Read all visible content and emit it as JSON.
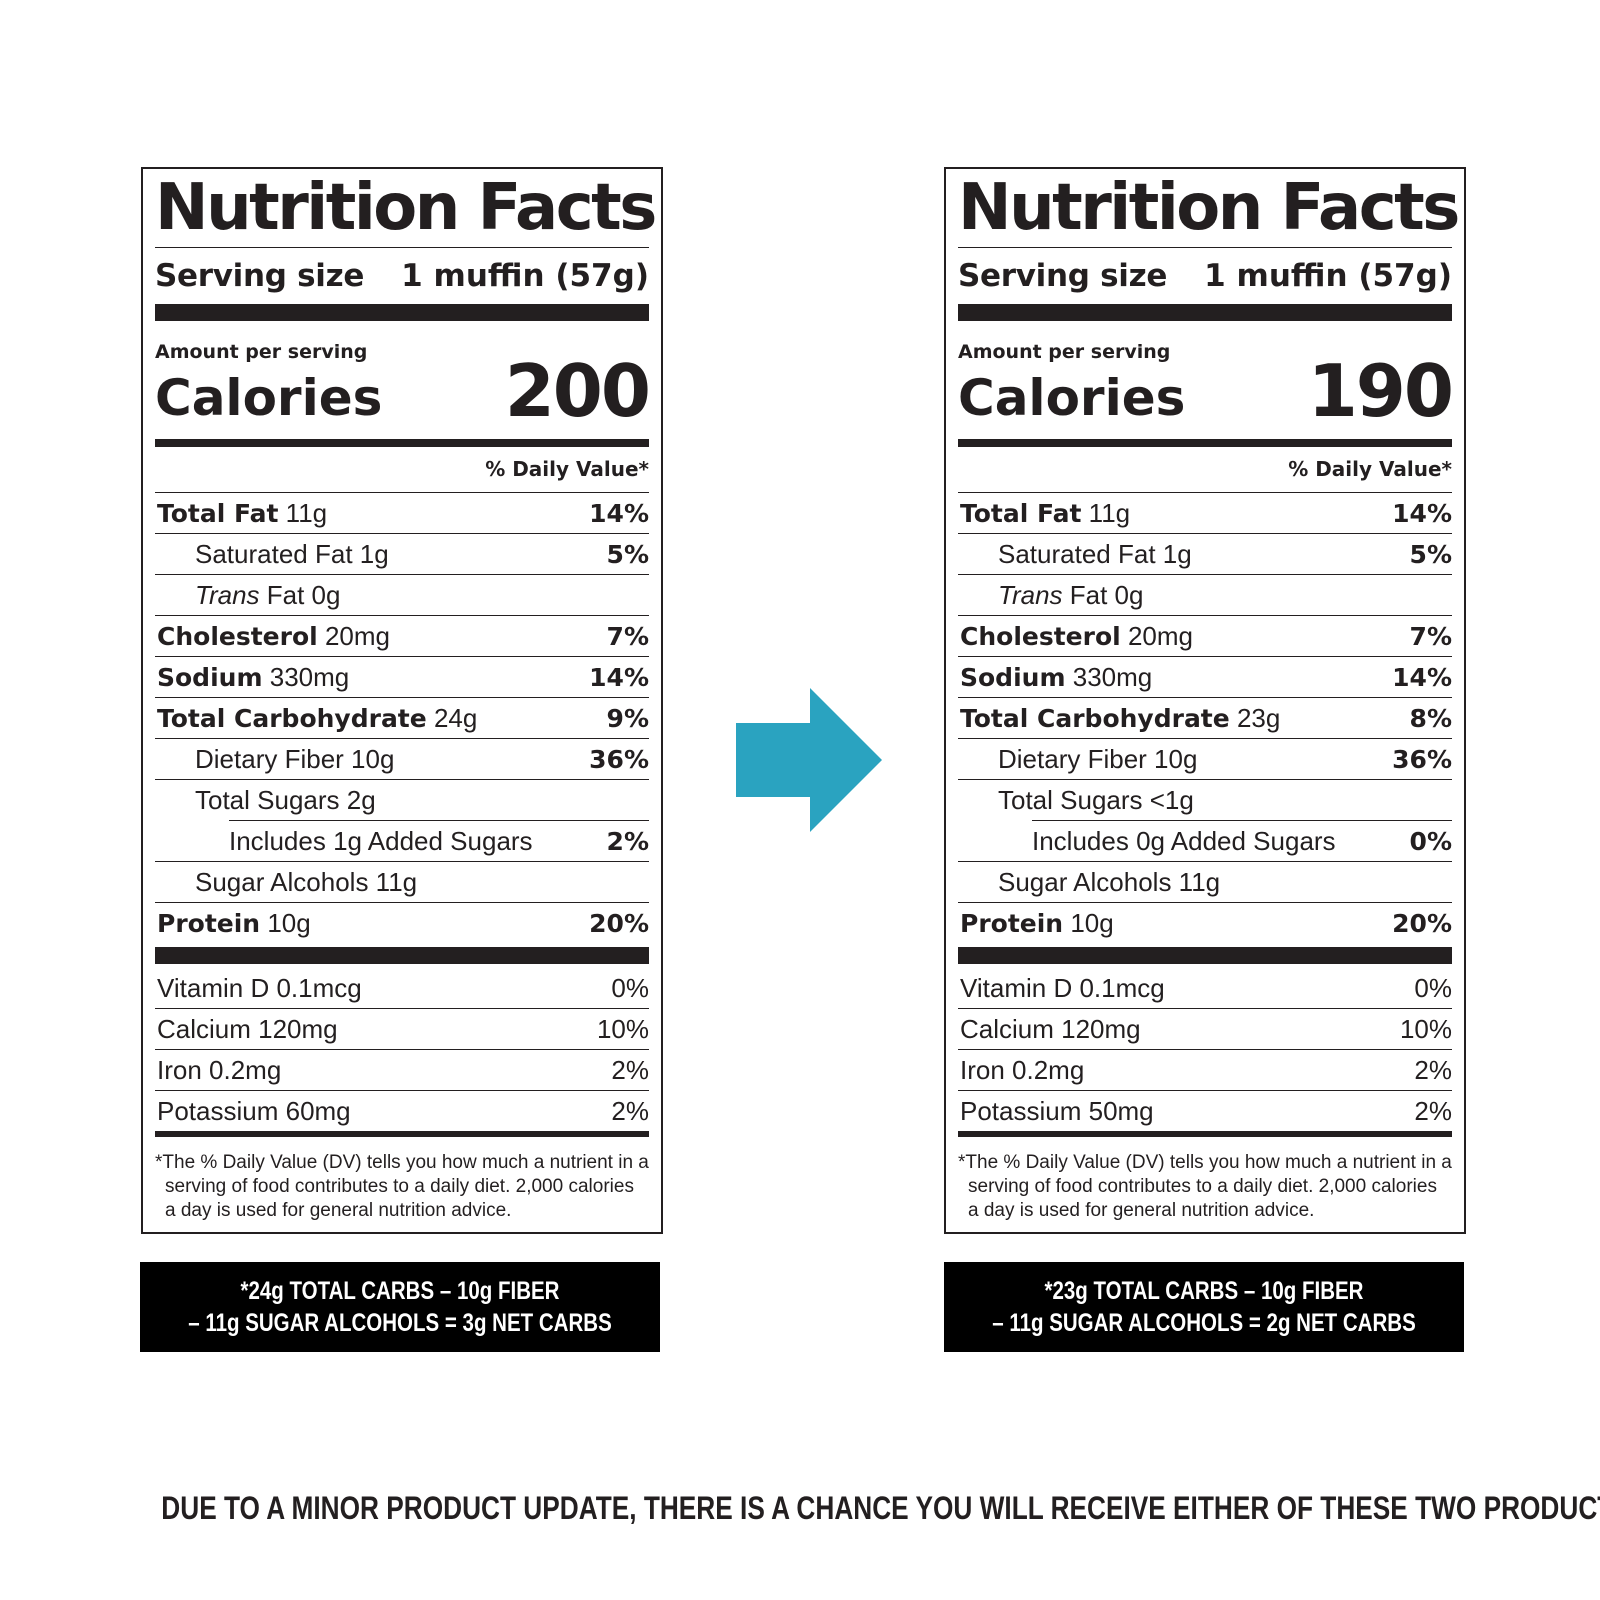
{
  "labels": [
    {
      "title": "Nutrition Facts",
      "serving_label": "Serving size",
      "serving_value": "1 muffin (57g)",
      "amount_per_serving": "Amount per serving",
      "calories_label": "Calories",
      "calories_value": "200",
      "daily_value_header": "% Daily Value*",
      "total_fat": {
        "name": "Total Fat",
        "amount": "11g",
        "dv": "14%"
      },
      "saturated_fat": {
        "name": "Saturated Fat 1g",
        "dv": "5%"
      },
      "trans_fat": {
        "italic": "Trans",
        "rest": "Fat 0g"
      },
      "cholesterol": {
        "name": "Cholesterol",
        "amount": "20mg",
        "dv": "7%"
      },
      "sodium": {
        "name": "Sodium",
        "amount": "330mg",
        "dv": "14%"
      },
      "total_carbohydrate": {
        "name": "Total Carbohydrate",
        "amount": "24g",
        "dv": "9%"
      },
      "dietary_fiber": {
        "name": "Dietary Fiber 10g",
        "dv": "36%"
      },
      "total_sugars": {
        "name": "Total Sugars 2g"
      },
      "added_sugars": {
        "name": "Includes 1g Added Sugars",
        "dv": "2%"
      },
      "sugar_alcohols": {
        "name": "Sugar Alcohols 11g"
      },
      "protein": {
        "name": "Protein",
        "amount": "10g",
        "dv": "20%"
      },
      "vitamin_d": {
        "name": "Vitamin D 0.1mcg",
        "dv": "0%"
      },
      "calcium": {
        "name": "Calcium 120mg",
        "dv": "10%"
      },
      "iron": {
        "name": "Iron 0.2mg",
        "dv": "2%"
      },
      "potassium": {
        "name": "Potassium 60mg",
        "dv": "2%"
      },
      "footnote": "*The % Daily Value (DV) tells you how much a nutrient in a serving of food contributes to a daily diet. 2,000 calories a day is used for general nutrition advice.",
      "net_carbs_line1": "*24g TOTAL CARBS – 10g FIBER",
      "net_carbs_line2": "– 11g SUGAR ALCOHOLS = 3g NET CARBS"
    },
    {
      "title": "Nutrition Facts",
      "serving_label": "Serving size",
      "serving_value": "1 muffin (57g)",
      "amount_per_serving": "Amount per serving",
      "calories_label": "Calories",
      "calories_value": "190",
      "daily_value_header": "% Daily Value*",
      "total_fat": {
        "name": "Total Fat",
        "amount": "11g",
        "dv": "14%"
      },
      "saturated_fat": {
        "name": "Saturated Fat 1g",
        "dv": "5%"
      },
      "trans_fat": {
        "italic": "Trans",
        "rest": "Fat 0g"
      },
      "cholesterol": {
        "name": "Cholesterol",
        "amount": "20mg",
        "dv": "7%"
      },
      "sodium": {
        "name": "Sodium",
        "amount": "330mg",
        "dv": "14%"
      },
      "total_carbohydrate": {
        "name": "Total Carbohydrate",
        "amount": "23g",
        "dv": "8%"
      },
      "dietary_fiber": {
        "name": "Dietary Fiber 10g",
        "dv": "36%"
      },
      "total_sugars": {
        "name": "Total Sugars <1g"
      },
      "added_sugars": {
        "name": "Includes 0g Added Sugars",
        "dv": "0%"
      },
      "sugar_alcohols": {
        "name": "Sugar Alcohols 11g"
      },
      "protein": {
        "name": "Protein",
        "amount": "10g",
        "dv": "20%"
      },
      "vitamin_d": {
        "name": "Vitamin D 0.1mcg",
        "dv": "0%"
      },
      "calcium": {
        "name": "Calcium 120mg",
        "dv": "10%"
      },
      "iron": {
        "name": "Iron 0.2mg",
        "dv": "2%"
      },
      "potassium": {
        "name": "Potassium 50mg",
        "dv": "2%"
      },
      "footnote": "*The % Daily Value (DV) tells you how much a nutrient in a serving of food contributes to a daily diet. 2,000 calories a day is used for general nutrition advice.",
      "net_carbs_line1": "*23g TOTAL CARBS – 10g FIBER",
      "net_carbs_line2": "– 11g SUGAR ALCOHOLS = 2g NET CARBS"
    }
  ],
  "arrow": {
    "icon": "right-arrow-icon",
    "color": "#2aa3c0"
  },
  "bottom_note": "DUE TO A MINOR PRODUCT UPDATE, THERE IS A CHANCE YOU WILL RECEIVE EITHER OF THESE TWO PRODUCTS"
}
